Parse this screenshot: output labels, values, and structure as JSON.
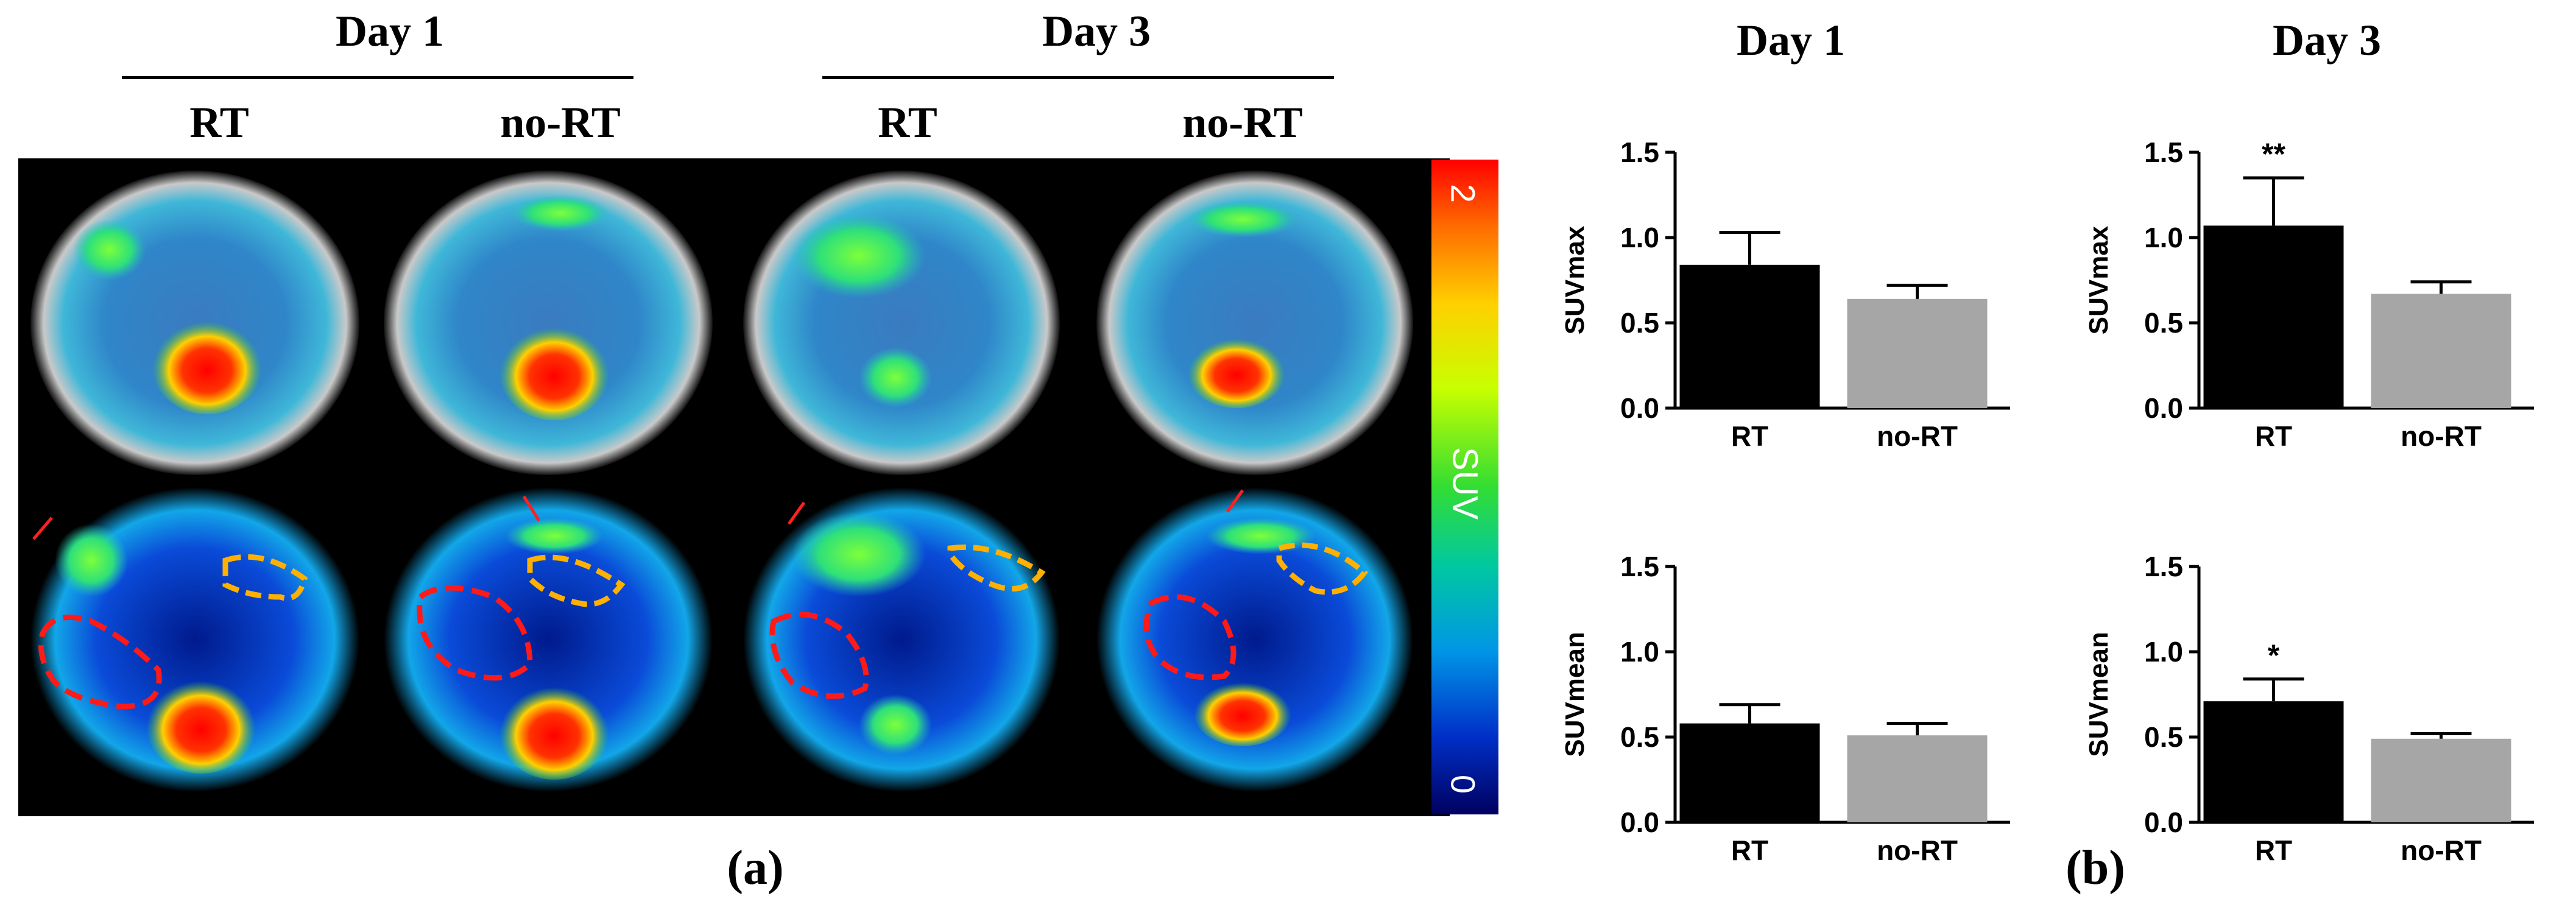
{
  "left_panel": {
    "day_headers": [
      "Day 1",
      "Day 3"
    ],
    "group_labels": [
      "RT",
      "no-RT",
      "RT",
      "no-RT"
    ],
    "colorbar": {
      "label": "SUV",
      "min_label": "0",
      "max_label": "2"
    },
    "panel_label": "(a)"
  },
  "right_panel": {
    "column_titles": [
      "Day 1",
      "Day 3"
    ],
    "panel_label": "(b)"
  },
  "colors": {
    "rt_bar": "#000000",
    "nort_bar": "#a6a6a6",
    "red_roi": "#ff1a1a",
    "orange_roi": "#ffb000",
    "arrow": "#ff2020"
  },
  "chart_data": [
    {
      "type": "bar",
      "xlabel": "",
      "ylabel": "SUVmax",
      "ylim": [
        0,
        1.5
      ],
      "yticks": [
        "0.0",
        "0.5",
        "1.0",
        "1.5"
      ],
      "categories": [
        "RT",
        "no-RT"
      ],
      "values": [
        0.84,
        0.64
      ],
      "errors": [
        0.19,
        0.08
      ],
      "annotations": [
        "",
        ""
      ]
    },
    {
      "type": "bar",
      "xlabel": "",
      "ylabel": "SUVmax",
      "ylim": [
        0,
        1.5
      ],
      "yticks": [
        "0.0",
        "0.5",
        "1.0",
        "1.5"
      ],
      "categories": [
        "RT",
        "no-RT"
      ],
      "values": [
        1.07,
        0.67
      ],
      "errors": [
        0.28,
        0.07
      ],
      "annotations": [
        "**",
        ""
      ]
    },
    {
      "type": "bar",
      "xlabel": "",
      "ylabel": "SUVmean",
      "ylim": [
        0,
        1.5
      ],
      "yticks": [
        "0.0",
        "0.5",
        "1.0",
        "1.5"
      ],
      "categories": [
        "RT",
        "no-RT"
      ],
      "values": [
        0.58,
        0.51
      ],
      "errors": [
        0.11,
        0.07
      ],
      "annotations": [
        "",
        ""
      ]
    },
    {
      "type": "bar",
      "xlabel": "",
      "ylabel": "SUVmean",
      "ylim": [
        0,
        1.5
      ],
      "yticks": [
        "0.0",
        "0.5",
        "1.0",
        "1.5"
      ],
      "categories": [
        "RT",
        "no-RT"
      ],
      "values": [
        0.71,
        0.49
      ],
      "errors": [
        0.13,
        0.03
      ],
      "annotations": [
        "*",
        ""
      ]
    }
  ]
}
